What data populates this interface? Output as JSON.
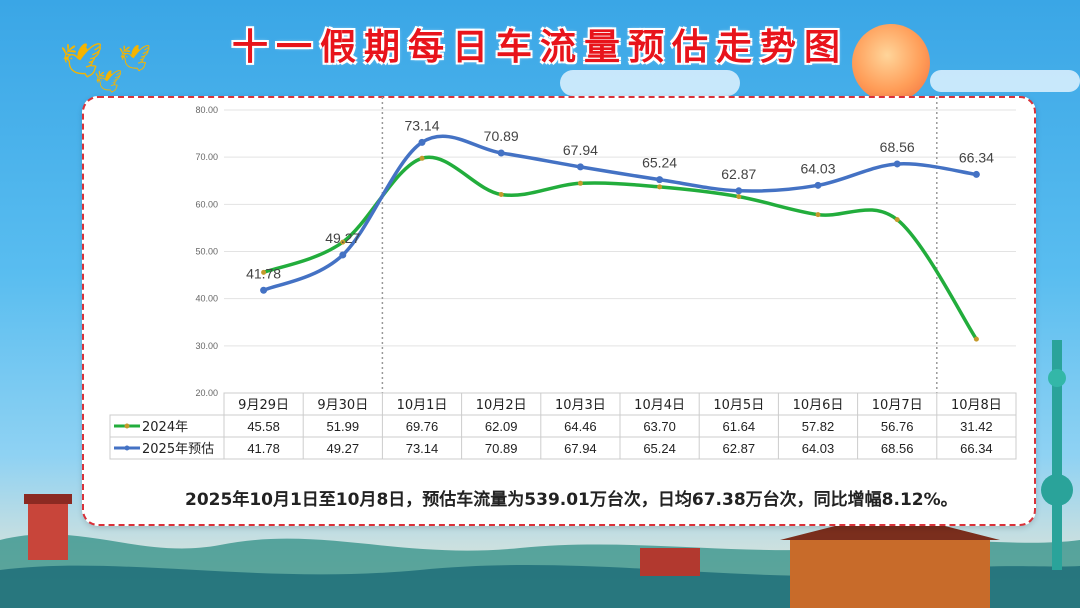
{
  "title": "十一假期每日车流量预估走势图",
  "summary": "2025年10月1日至10月8日，预估车流量为539.01万台次，日均67.38万台次，同比增幅8.12%。",
  "colors": {
    "s2024": "#22ad3c",
    "s2025": "#4472c4",
    "title": "#e8141b",
    "border": "#d9323a"
  },
  "chart_data": {
    "type": "line",
    "categories": [
      "9月29日",
      "9月30日",
      "10月1日",
      "10月2日",
      "10月3日",
      "10月4日",
      "10月5日",
      "10月6日",
      "10月7日",
      "10月8日"
    ],
    "yticks": [
      "20.00",
      "30.00",
      "40.00",
      "50.00",
      "60.00",
      "70.00",
      "80.00"
    ],
    "ylim": [
      20,
      80
    ],
    "grid": true,
    "series": [
      {
        "name": "2024年",
        "values": [
          45.58,
          51.99,
          69.76,
          62.09,
          64.46,
          63.7,
          61.64,
          57.82,
          56.76,
          31.42
        ],
        "labels": [
          "45.58",
          "51.99",
          "69.76",
          "62.09",
          "64.46",
          "63.70",
          "61.64",
          "57.82",
          "56.76",
          "31.42"
        ]
      },
      {
        "name": "2025年预估",
        "values": [
          41.78,
          49.27,
          73.14,
          70.89,
          67.94,
          65.24,
          62.87,
          64.03,
          68.56,
          66.34
        ],
        "labels": [
          "41.78",
          "49.27",
          "73.14",
          "70.89",
          "67.94",
          "65.24",
          "62.87",
          "64.03",
          "68.56",
          "66.34"
        ]
      }
    ],
    "data_labels_series": "2025年预估",
    "highlight_categories": [
      "10月1日",
      "10月8日"
    ]
  }
}
